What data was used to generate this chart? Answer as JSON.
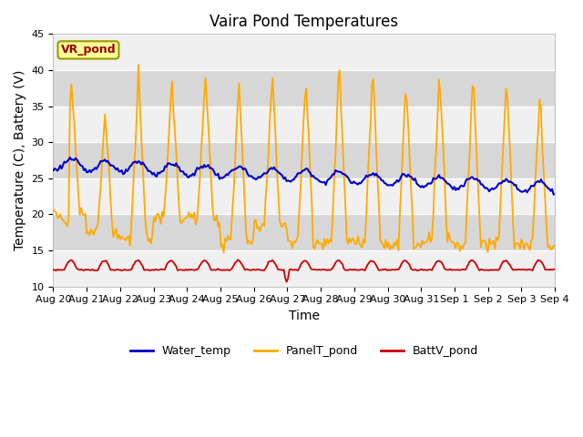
{
  "title": "Vaira Pond Temperatures",
  "xlabel": "Time",
  "ylabel": "Temperature (C), Battery (V)",
  "ylim": [
    10,
    45
  ],
  "yticks": [
    10,
    15,
    20,
    25,
    30,
    35,
    40,
    45
  ],
  "x_tick_labels": [
    "Aug 20",
    "Aug 21",
    "Aug 22",
    "Aug 23",
    "Aug 24",
    "Aug 25",
    "Aug 26",
    "Aug 27",
    "Aug 28",
    "Aug 29",
    "Aug 30",
    "Aug 31",
    "Sep 1",
    "Sep 2",
    "Sep 3",
    "Sep 4"
  ],
  "site_label": "VR_pond",
  "legend_entries": [
    "Water_temp",
    "PanelT_pond",
    "BattV_pond"
  ],
  "water_temp_color": "#0000cc",
  "panel_temp_color": "#ffaa00",
  "batt_color": "#cc0000",
  "title_fontsize": 12,
  "axis_label_fontsize": 10,
  "tick_fontsize": 8,
  "legend_fontsize": 9,
  "bg_light": "#f0f0f0",
  "bg_dark": "#d8d8d8",
  "site_label_color": "#990000",
  "site_label_bg": "#ffff99",
  "site_label_edge": "#999900"
}
